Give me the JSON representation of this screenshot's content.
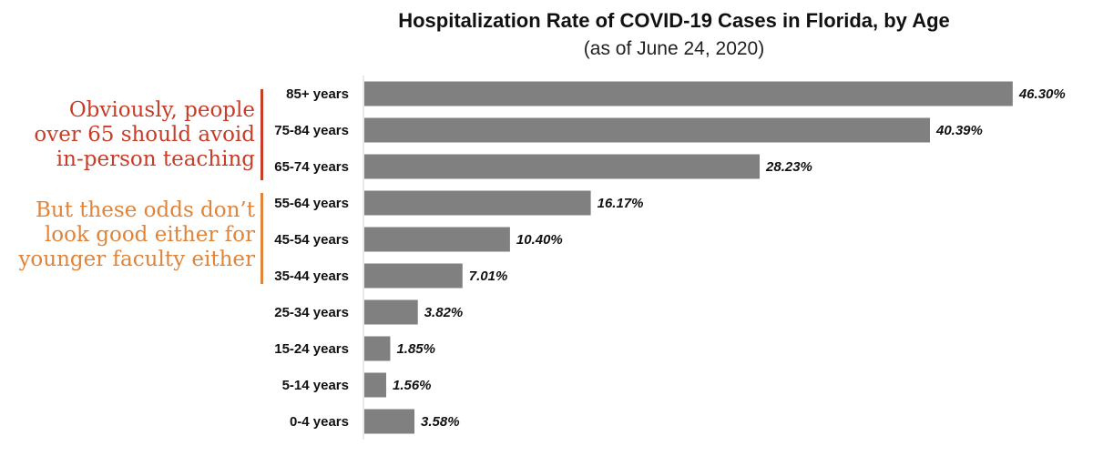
{
  "chart_data": {
    "type": "bar",
    "orientation": "horizontal",
    "title": "Hospitalization Rate of COVID-19 Cases in Florida, by Age",
    "subtitle": "(as of June 24, 2020)",
    "categories": [
      "85+ years",
      "75-84 years",
      "65-74 years",
      "55-64 years",
      "45-54 years",
      "35-44 years",
      "25-34 years",
      "15-24 years",
      "5-14 years",
      "0-4 years"
    ],
    "values": [
      46.3,
      40.39,
      28.23,
      16.17,
      10.4,
      7.01,
      3.82,
      1.85,
      1.56,
      3.58
    ],
    "data_labels": [
      "46.30%",
      "40.39%",
      "28.23%",
      "16.17%",
      "10.40%",
      "7.01%",
      "3.82%",
      "1.85%",
      "1.56%",
      "3.58%"
    ],
    "xlim": [
      0,
      46.7
    ],
    "bar_color": "#808080",
    "grid": false,
    "legend": "none"
  },
  "annotations": [
    {
      "lines": [
        "Obviously, people",
        "over 65 should avoid",
        "in-person teaching"
      ],
      "color": "#c83c28"
    },
    {
      "lines": [
        "But these odds don’t",
        "look good either for",
        "younger faculty either"
      ],
      "color": "#e0843a"
    }
  ]
}
